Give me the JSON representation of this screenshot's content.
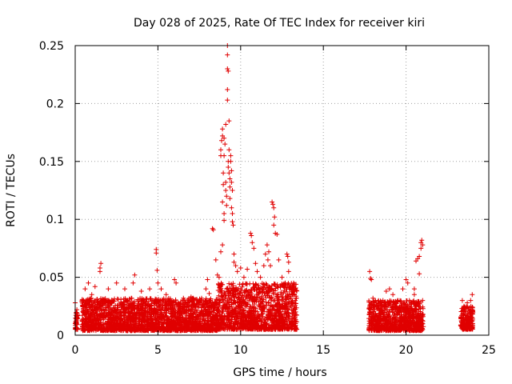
{
  "chart_data": {
    "type": "scatter",
    "title": "Day 028 of 2025, Rate Of TEC Index for receiver kiri",
    "xlabel": "GPS time / hours",
    "ylabel": "ROTI / TECUs",
    "xlim": [
      0,
      25
    ],
    "ylim": [
      0,
      0.25
    ],
    "x_ticks": [
      0,
      5,
      10,
      15,
      20,
      25
    ],
    "x_tick_labels": [
      "0",
      "5",
      "10",
      "15",
      "20",
      "25"
    ],
    "y_ticks": [
      0,
      0.05,
      0.1,
      0.15,
      0.2,
      0.25
    ],
    "y_tick_labels": [
      "0",
      "0.05",
      "0.1",
      "0.15",
      "0.2",
      "0.25"
    ],
    "grid": true,
    "marker": "+",
    "marker_color": "#e00000",
    "series": [
      {
        "name": "ROTI",
        "points": [
          [
            0.0,
            0.028
          ],
          [
            0.0,
            0.01
          ],
          [
            0.05,
            0.005
          ],
          [
            0.1,
            0.015
          ],
          [
            0.1,
            0.022
          ],
          [
            0.5,
            0.03
          ],
          [
            0.6,
            0.04
          ],
          [
            0.8,
            0.045
          ],
          [
            1.0,
            0.035
          ],
          [
            1.2,
            0.042
          ],
          [
            1.5,
            0.058
          ],
          [
            1.55,
            0.062
          ],
          [
            1.5,
            0.055
          ],
          [
            2.0,
            0.04
          ],
          [
            2.5,
            0.045
          ],
          [
            3.0,
            0.04
          ],
          [
            3.5,
            0.045
          ],
          [
            3.6,
            0.052
          ],
          [
            4.0,
            0.038
          ],
          [
            4.5,
            0.04
          ],
          [
            4.9,
            0.074
          ],
          [
            4.9,
            0.071
          ],
          [
            4.95,
            0.056
          ],
          [
            5.0,
            0.045
          ],
          [
            5.2,
            0.04
          ],
          [
            5.5,
            0.035
          ],
          [
            6.0,
            0.048
          ],
          [
            6.1,
            0.045
          ],
          [
            6.5,
            0.03
          ],
          [
            7.0,
            0.033
          ],
          [
            7.5,
            0.028
          ],
          [
            7.9,
            0.04
          ],
          [
            8.0,
            0.048
          ],
          [
            8.1,
            0.036
          ],
          [
            8.3,
            0.092
          ],
          [
            8.35,
            0.091
          ],
          [
            8.5,
            0.065
          ],
          [
            8.6,
            0.052
          ],
          [
            8.7,
            0.05
          ],
          [
            8.8,
            0.04
          ],
          [
            8.8,
            0.072
          ],
          [
            8.9,
            0.078
          ],
          [
            8.9,
            0.115
          ],
          [
            9.0,
            0.105
          ],
          [
            9.0,
            0.099
          ],
          [
            8.8,
            0.155
          ],
          [
            8.8,
            0.16
          ],
          [
            8.85,
            0.168
          ],
          [
            8.9,
            0.172
          ],
          [
            8.9,
            0.178
          ],
          [
            8.95,
            0.14
          ],
          [
            8.95,
            0.13
          ],
          [
            9.0,
            0.17
          ],
          [
            9.0,
            0.155
          ],
          [
            9.05,
            0.165
          ],
          [
            9.1,
            0.182
          ],
          [
            9.1,
            0.125
          ],
          [
            9.1,
            0.132
          ],
          [
            9.15,
            0.12
          ],
          [
            9.15,
            0.112
          ],
          [
            9.2,
            0.25
          ],
          [
            9.2,
            0.242
          ],
          [
            9.2,
            0.23
          ],
          [
            9.25,
            0.228
          ],
          [
            9.2,
            0.212
          ],
          [
            9.2,
            0.203
          ],
          [
            9.25,
            0.145
          ],
          [
            9.25,
            0.15
          ],
          [
            9.3,
            0.185
          ],
          [
            9.3,
            0.16
          ],
          [
            9.3,
            0.14
          ],
          [
            9.35,
            0.135
          ],
          [
            9.35,
            0.128
          ],
          [
            9.35,
            0.118
          ],
          [
            9.4,
            0.15
          ],
          [
            9.4,
            0.155
          ],
          [
            9.45,
            0.142
          ],
          [
            9.45,
            0.132
          ],
          [
            9.45,
            0.11
          ],
          [
            9.5,
            0.125
          ],
          [
            9.5,
            0.105
          ],
          [
            9.5,
            0.098
          ],
          [
            9.55,
            0.095
          ],
          [
            9.6,
            0.07
          ],
          [
            9.6,
            0.063
          ],
          [
            9.7,
            0.06
          ],
          [
            9.8,
            0.055
          ],
          [
            10.0,
            0.058
          ],
          [
            10.2,
            0.05
          ],
          [
            10.4,
            0.057
          ],
          [
            10.6,
            0.088
          ],
          [
            10.65,
            0.086
          ],
          [
            10.7,
            0.08
          ],
          [
            10.8,
            0.075
          ],
          [
            10.9,
            0.062
          ],
          [
            11.0,
            0.055
          ],
          [
            11.2,
            0.05
          ],
          [
            11.4,
            0.06
          ],
          [
            11.5,
            0.07
          ],
          [
            11.6,
            0.078
          ],
          [
            11.65,
            0.065
          ],
          [
            11.7,
            0.072
          ],
          [
            11.8,
            0.06
          ],
          [
            11.9,
            0.115
          ],
          [
            11.95,
            0.113
          ],
          [
            12.0,
            0.11
          ],
          [
            12.05,
            0.102
          ],
          [
            12.1,
            0.088
          ],
          [
            12.0,
            0.095
          ],
          [
            12.2,
            0.087
          ],
          [
            12.3,
            0.065
          ],
          [
            12.5,
            0.05
          ],
          [
            12.7,
            0.045
          ],
          [
            12.8,
            0.07
          ],
          [
            12.85,
            0.068
          ],
          [
            12.9,
            0.063
          ],
          [
            12.9,
            0.055
          ],
          [
            13.0,
            0.042
          ],
          [
            13.2,
            0.045
          ],
          [
            13.3,
            0.04
          ],
          [
            13.3,
            0.03
          ],
          [
            17.8,
            0.055
          ],
          [
            17.85,
            0.049
          ],
          [
            17.9,
            0.048
          ],
          [
            18.0,
            0.032
          ],
          [
            18.2,
            0.028
          ],
          [
            18.5,
            0.025
          ],
          [
            18.8,
            0.038
          ],
          [
            19.0,
            0.04
          ],
          [
            19.2,
            0.035
          ],
          [
            19.5,
            0.03
          ],
          [
            19.8,
            0.04
          ],
          [
            20.0,
            0.048
          ],
          [
            20.1,
            0.045
          ],
          [
            20.2,
            0.03
          ],
          [
            20.5,
            0.035
          ],
          [
            20.5,
            0.04
          ],
          [
            20.6,
            0.064
          ],
          [
            20.7,
            0.066
          ],
          [
            20.8,
            0.068
          ],
          [
            20.8,
            0.053
          ],
          [
            20.9,
            0.075
          ],
          [
            20.9,
            0.08
          ],
          [
            20.95,
            0.082
          ],
          [
            21.0,
            0.078
          ],
          [
            21.0,
            0.03
          ],
          [
            23.4,
            0.03
          ],
          [
            23.5,
            0.025
          ],
          [
            23.7,
            0.028
          ],
          [
            23.9,
            0.03
          ],
          [
            24.0,
            0.035
          ],
          [
            24.0,
            0.022
          ]
        ],
        "dense_bands": [
          {
            "x_from": 0.0,
            "x_to": 0.15,
            "y_low": 0.005,
            "y_high": 0.02
          },
          {
            "x_from": 0.4,
            "x_to": 8.6,
            "y_low": 0.004,
            "y_high": 0.032
          },
          {
            "x_from": 8.6,
            "x_to": 13.4,
            "y_low": 0.005,
            "y_high": 0.045
          },
          {
            "x_from": 17.75,
            "x_to": 21.05,
            "y_low": 0.004,
            "y_high": 0.03
          },
          {
            "x_from": 23.3,
            "x_to": 24.05,
            "y_low": 0.005,
            "y_high": 0.025
          }
        ]
      }
    ]
  }
}
